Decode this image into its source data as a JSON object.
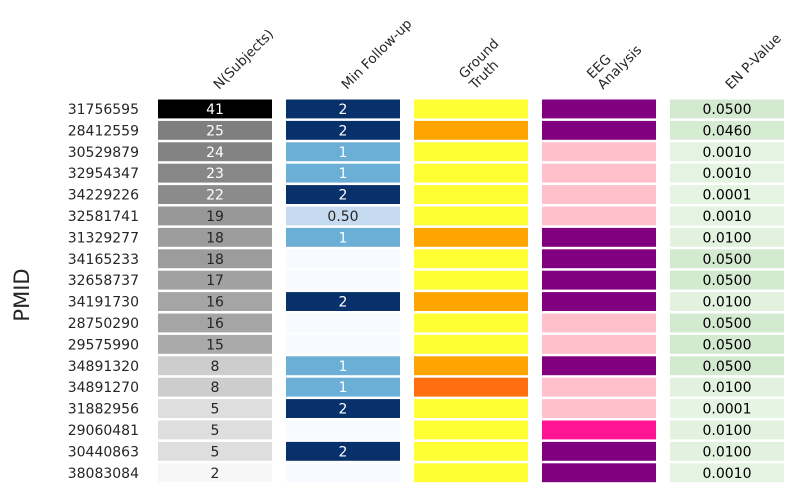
{
  "chart_data": {
    "type": "heatmap",
    "ylabel": "PMID",
    "columns": [
      "N(Subjects)",
      "Min Follow-up",
      "Ground\nTruth",
      "EEG\nAnalysis",
      "EN P-Value"
    ],
    "rows": [
      {
        "pmid": "31756595",
        "n": 41,
        "followup": "2",
        "truth": "#ffff33",
        "eeg": "#800080",
        "p": "0.0500"
      },
      {
        "pmid": "28412559",
        "n": 25,
        "followup": "2",
        "truth": "#ffa500",
        "eeg": "#800080",
        "p": "0.0460"
      },
      {
        "pmid": "30529879",
        "n": 24,
        "followup": "1",
        "truth": "#ffff33",
        "eeg": "#ffc0cb",
        "p": "0.0010"
      },
      {
        "pmid": "32954347",
        "n": 23,
        "followup": "1",
        "truth": "#ffff33",
        "eeg": "#ffc0cb",
        "p": "0.0010"
      },
      {
        "pmid": "34229226",
        "n": 22,
        "followup": "2",
        "truth": "#ffff33",
        "eeg": "#ffc0cb",
        "p": "0.0001"
      },
      {
        "pmid": "32581741",
        "n": 19,
        "followup": "0.50",
        "truth": "#ffff33",
        "eeg": "#ffc0cb",
        "p": "0.0010"
      },
      {
        "pmid": "31329277",
        "n": 18,
        "followup": "1",
        "truth": "#ffa500",
        "eeg": "#800080",
        "p": "0.0100"
      },
      {
        "pmid": "34165233",
        "n": 18,
        "followup": "",
        "truth": "#ffff33",
        "eeg": "#800080",
        "p": "0.0500"
      },
      {
        "pmid": "32658737",
        "n": 17,
        "followup": "",
        "truth": "#ffff33",
        "eeg": "#800080",
        "p": "0.0500"
      },
      {
        "pmid": "34191730",
        "n": 16,
        "followup": "2",
        "truth": "#ffa500",
        "eeg": "#800080",
        "p": "0.0100"
      },
      {
        "pmid": "28750290",
        "n": 16,
        "followup": "",
        "truth": "#ffff33",
        "eeg": "#ffc0cb",
        "p": "0.0500"
      },
      {
        "pmid": "29575990",
        "n": 15,
        "followup": "",
        "truth": "#ffff33",
        "eeg": "#ffc0cb",
        "p": "0.0500"
      },
      {
        "pmid": "34891320",
        "n": 8,
        "followup": "1",
        "truth": "#ffa500",
        "eeg": "#800080",
        "p": "0.0500"
      },
      {
        "pmid": "34891270",
        "n": 8,
        "followup": "1",
        "truth": "#ff6f0f",
        "eeg": "#ffc0cb",
        "p": "0.0100"
      },
      {
        "pmid": "31882956",
        "n": 5,
        "followup": "2",
        "truth": "#ffff33",
        "eeg": "#ffc0cb",
        "p": "0.0001"
      },
      {
        "pmid": "29060481",
        "n": 5,
        "followup": "",
        "truth": "#ffff33",
        "eeg": "#ff1493",
        "p": "0.0100"
      },
      {
        "pmid": "30440863",
        "n": 5,
        "followup": "2",
        "truth": "#ffff33",
        "eeg": "#800080",
        "p": "0.0100"
      },
      {
        "pmid": "38083084",
        "n": 2,
        "followup": "",
        "truth": "#ffff33",
        "eeg": "#800080",
        "p": "0.0010"
      }
    ],
    "scales": {
      "n_range": [
        2,
        41
      ],
      "followup_colors": {
        "2": "#08306b",
        "1": "#6baed6",
        "0.50": "#c6dbef",
        "": "#f7fbff"
      },
      "p_colors": {
        "0.0500": "#d3ead0",
        "0.0460": "#d5ebd2",
        "0.0100": "#e2f2df",
        "0.0010": "#e5f4e2",
        "0.0001": "#e6f4e3"
      }
    }
  }
}
